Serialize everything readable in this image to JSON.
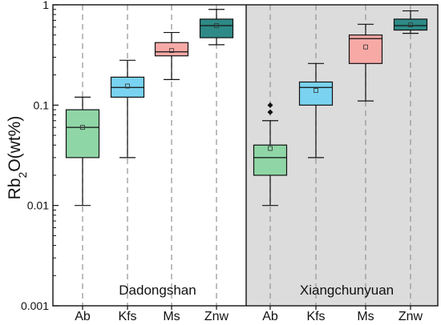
{
  "chart_data": {
    "type": "box",
    "scale": "log",
    "ylim": [
      0.001,
      1
    ],
    "yticks": [
      {
        "value": 0.001,
        "label": "0.001"
      },
      {
        "value": 0.01,
        "label": "0.01"
      },
      {
        "value": 0.1,
        "label": "0.1"
      },
      {
        "value": 1,
        "label": "1"
      }
    ],
    "ylabel": {
      "main": "Rb",
      "sub": "2",
      "rest": "O(wt%)"
    },
    "grid": "dashed vertical lines at each category",
    "colors": {
      "Ab": "#8fd6a6",
      "Kfs": "#79d3f0",
      "Ms": "#f7a9a6",
      "Znw": "#2e8a86",
      "panel2_background": "#dcdcdc"
    },
    "groups": [
      {
        "label": "Dadongshan",
        "shaded": false,
        "boxes": [
          {
            "category": "Ab",
            "whisker_low": 0.01,
            "q1": 0.03,
            "median": 0.06,
            "q3": 0.09,
            "whisker_high": 0.12,
            "mean": 0.06,
            "outliers": []
          },
          {
            "category": "Kfs",
            "whisker_low": 0.03,
            "q1": 0.12,
            "median": 0.15,
            "q3": 0.19,
            "whisker_high": 0.28,
            "mean": 0.155,
            "outliers": []
          },
          {
            "category": "Ms",
            "whisker_low": 0.18,
            "q1": 0.31,
            "median": 0.34,
            "q3": 0.42,
            "whisker_high": 0.53,
            "mean": 0.35,
            "outliers": []
          },
          {
            "category": "Znw",
            "whisker_low": 0.4,
            "q1": 0.47,
            "median": 0.62,
            "q3": 0.72,
            "whisker_high": 0.9,
            "mean": 0.62,
            "outliers": []
          }
        ]
      },
      {
        "label": "Xiangchunyuan",
        "shaded": true,
        "boxes": [
          {
            "category": "Ab",
            "whisker_low": 0.01,
            "q1": 0.02,
            "median": 0.03,
            "q3": 0.04,
            "whisker_high": 0.07,
            "mean": 0.037,
            "outliers": [
              0.085,
              0.1
            ]
          },
          {
            "category": "Kfs",
            "whisker_low": 0.03,
            "q1": 0.1,
            "median": 0.15,
            "q3": 0.17,
            "whisker_high": 0.26,
            "mean": 0.14,
            "outliers": []
          },
          {
            "category": "Ms",
            "whisker_low": 0.11,
            "q1": 0.26,
            "median": 0.46,
            "q3": 0.5,
            "whisker_high": 0.64,
            "mean": 0.38,
            "outliers": []
          },
          {
            "category": "Znw",
            "whisker_low": 0.52,
            "q1": 0.56,
            "median": 0.62,
            "q3": 0.72,
            "whisker_high": 0.87,
            "mean": 0.63,
            "outliers": []
          }
        ]
      }
    ]
  }
}
